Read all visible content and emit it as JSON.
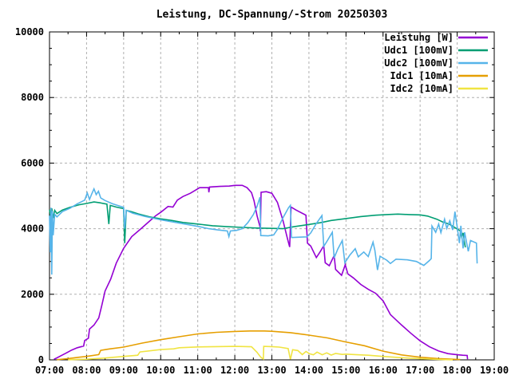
{
  "title": "Leistung, DC-Spannung/-Strom 20250303",
  "colors": {
    "background": "#ffffff",
    "border": "#000000",
    "grid": "#b0b0b0",
    "text": "#000000"
  },
  "chart_data": {
    "type": "line",
    "title": "Leistung, DC-Spannung/-Strom 20250303",
    "grid": true,
    "legend_position": "top-right",
    "x_axis": {
      "label": "",
      "range_hours": [
        7,
        19
      ],
      "tick_values": [
        7,
        8,
        9,
        10,
        11,
        12,
        13,
        14,
        15,
        16,
        17,
        18,
        19
      ],
      "tick_labels": [
        "07:00",
        "08:00",
        "09:00",
        "10:00",
        "11:00",
        "12:00",
        "13:00",
        "14:00",
        "15:00",
        "16:00",
        "17:00",
        "18:00",
        "19:00"
      ],
      "minor_tick_step_hours": 0.5
    },
    "y_axis": {
      "label": "",
      "range": [
        0,
        10000
      ],
      "tick_values": [
        0,
        2000,
        4000,
        6000,
        8000,
        10000
      ],
      "tick_labels": [
        "0",
        "2000",
        "4000",
        "6000",
        "8000",
        "10000"
      ],
      "minor_tick_step": 500
    },
    "series": [
      {
        "name": "Leistung [W]",
        "color": "#9400D3",
        "points": [
          [
            7.12,
            20
          ],
          [
            7.2,
            60
          ],
          [
            7.3,
            120
          ],
          [
            7.45,
            210
          ],
          [
            7.6,
            300
          ],
          [
            7.75,
            370
          ],
          [
            7.92,
            420
          ],
          [
            7.95,
            590
          ],
          [
            8.05,
            660
          ],
          [
            8.08,
            940
          ],
          [
            8.2,
            1060
          ],
          [
            8.33,
            1280
          ],
          [
            8.42,
            1700
          ],
          [
            8.5,
            2100
          ],
          [
            8.65,
            2460
          ],
          [
            8.8,
            2950
          ],
          [
            9.0,
            3400
          ],
          [
            9.22,
            3760
          ],
          [
            9.45,
            3980
          ],
          [
            9.7,
            4230
          ],
          [
            9.87,
            4400
          ],
          [
            10.0,
            4500
          ],
          [
            10.2,
            4680
          ],
          [
            10.33,
            4660
          ],
          [
            10.45,
            4870
          ],
          [
            10.6,
            4980
          ],
          [
            10.8,
            5080
          ],
          [
            10.95,
            5180
          ],
          [
            11.05,
            5250
          ],
          [
            11.29,
            5250
          ],
          [
            11.3,
            5110
          ],
          [
            11.32,
            5270
          ],
          [
            11.6,
            5290
          ],
          [
            11.85,
            5300
          ],
          [
            12.0,
            5320
          ],
          [
            12.2,
            5320
          ],
          [
            12.33,
            5250
          ],
          [
            12.45,
            5100
          ],
          [
            12.52,
            4850
          ],
          [
            12.6,
            4400
          ],
          [
            12.68,
            4060
          ],
          [
            12.69,
            3920
          ],
          [
            12.71,
            5110
          ],
          [
            12.85,
            5130
          ],
          [
            13.0,
            5080
          ],
          [
            13.15,
            4800
          ],
          [
            13.3,
            4250
          ],
          [
            13.42,
            3700
          ],
          [
            13.48,
            3440
          ],
          [
            13.52,
            4660
          ],
          [
            13.65,
            4570
          ],
          [
            13.92,
            4410
          ],
          [
            13.96,
            3560
          ],
          [
            14.05,
            3470
          ],
          [
            14.2,
            3120
          ],
          [
            14.3,
            3290
          ],
          [
            14.4,
            3480
          ],
          [
            14.44,
            2960
          ],
          [
            14.55,
            2870
          ],
          [
            14.68,
            3180
          ],
          [
            14.72,
            2760
          ],
          [
            14.88,
            2580
          ],
          [
            14.98,
            2900
          ],
          [
            15.05,
            2620
          ],
          [
            15.2,
            2500
          ],
          [
            15.4,
            2300
          ],
          [
            15.6,
            2150
          ],
          [
            15.8,
            2030
          ],
          [
            16.0,
            1800
          ],
          [
            16.2,
            1380
          ],
          [
            16.5,
            1060
          ],
          [
            16.75,
            810
          ],
          [
            17.0,
            580
          ],
          [
            17.25,
            400
          ],
          [
            17.5,
            270
          ],
          [
            17.75,
            190
          ],
          [
            18.0,
            155
          ],
          [
            18.15,
            140
          ],
          [
            18.27,
            135
          ],
          [
            18.28,
            20
          ]
        ]
      },
      {
        "name": "Udc1 [100mV]",
        "color": "#009E73",
        "points": [
          [
            7.0,
            4580
          ],
          [
            7.03,
            4370
          ],
          [
            7.06,
            4620
          ],
          [
            7.1,
            4320
          ],
          [
            7.14,
            4560
          ],
          [
            7.2,
            4460
          ],
          [
            7.35,
            4570
          ],
          [
            7.55,
            4650
          ],
          [
            7.8,
            4730
          ],
          [
            8.0,
            4770
          ],
          [
            8.2,
            4815
          ],
          [
            8.35,
            4790
          ],
          [
            8.55,
            4750
          ],
          [
            8.6,
            4140
          ],
          [
            8.64,
            4710
          ],
          [
            8.8,
            4660
          ],
          [
            9.0,
            4610
          ],
          [
            9.03,
            3560
          ],
          [
            9.07,
            4560
          ],
          [
            9.2,
            4520
          ],
          [
            9.4,
            4450
          ],
          [
            9.7,
            4360
          ],
          [
            10.0,
            4300
          ],
          [
            10.3,
            4250
          ],
          [
            10.6,
            4190
          ],
          [
            11.0,
            4140
          ],
          [
            11.4,
            4090
          ],
          [
            11.8,
            4060
          ],
          [
            12.2,
            4040
          ],
          [
            12.6,
            4020
          ],
          [
            13.0,
            4010
          ],
          [
            13.3,
            4000
          ],
          [
            13.6,
            4060
          ],
          [
            14.0,
            4130
          ],
          [
            14.3,
            4180
          ],
          [
            14.6,
            4250
          ],
          [
            15.0,
            4310
          ],
          [
            15.4,
            4370
          ],
          [
            15.8,
            4410
          ],
          [
            16.1,
            4430
          ],
          [
            16.4,
            4445
          ],
          [
            16.7,
            4430
          ],
          [
            17.0,
            4420
          ],
          [
            17.2,
            4385
          ],
          [
            17.45,
            4290
          ],
          [
            17.6,
            4210
          ],
          [
            17.78,
            4140
          ],
          [
            17.9,
            4060
          ],
          [
            18.0,
            3990
          ],
          [
            18.08,
            3940
          ],
          [
            18.12,
            3750
          ],
          [
            18.16,
            3870
          ],
          [
            18.22,
            3430
          ]
        ]
      },
      {
        "name": "Udc2 [100mV]",
        "color": "#56B4E9",
        "points": [
          [
            7.0,
            4400
          ],
          [
            7.02,
            3280
          ],
          [
            7.04,
            4640
          ],
          [
            7.06,
            2600
          ],
          [
            7.08,
            4540
          ],
          [
            7.1,
            3800
          ],
          [
            7.14,
            4440
          ],
          [
            7.2,
            4360
          ],
          [
            7.35,
            4520
          ],
          [
            7.55,
            4620
          ],
          [
            7.75,
            4760
          ],
          [
            7.95,
            4870
          ],
          [
            8.02,
            5090
          ],
          [
            8.08,
            4890
          ],
          [
            8.14,
            5060
          ],
          [
            8.2,
            5215
          ],
          [
            8.26,
            5040
          ],
          [
            8.32,
            5140
          ],
          [
            8.38,
            4940
          ],
          [
            8.5,
            4860
          ],
          [
            8.7,
            4760
          ],
          [
            9.0,
            4650
          ],
          [
            9.03,
            4000
          ],
          [
            9.07,
            4560
          ],
          [
            9.25,
            4470
          ],
          [
            9.55,
            4380
          ],
          [
            10.0,
            4270
          ],
          [
            10.5,
            4170
          ],
          [
            11.0,
            4070
          ],
          [
            11.3,
            4000
          ],
          [
            11.55,
            3960
          ],
          [
            11.8,
            3930
          ],
          [
            11.84,
            3760
          ],
          [
            11.88,
            3930
          ],
          [
            12.05,
            3950
          ],
          [
            12.2,
            4000
          ],
          [
            12.35,
            4180
          ],
          [
            12.5,
            4430
          ],
          [
            12.6,
            4680
          ],
          [
            12.68,
            4960
          ],
          [
            12.7,
            3790
          ],
          [
            12.9,
            3780
          ],
          [
            13.05,
            3810
          ],
          [
            13.15,
            3980
          ],
          [
            13.3,
            4330
          ],
          [
            13.45,
            4640
          ],
          [
            13.5,
            4710
          ],
          [
            13.53,
            3730
          ],
          [
            13.7,
            3740
          ],
          [
            13.94,
            3750
          ],
          [
            14.05,
            3870
          ],
          [
            14.2,
            4160
          ],
          [
            14.35,
            4400
          ],
          [
            14.4,
            3460
          ],
          [
            14.5,
            3640
          ],
          [
            14.63,
            3890
          ],
          [
            14.68,
            3110
          ],
          [
            14.78,
            3380
          ],
          [
            14.9,
            3640
          ],
          [
            14.97,
            2960
          ],
          [
            15.1,
            3190
          ],
          [
            15.25,
            3390
          ],
          [
            15.33,
            3140
          ],
          [
            15.48,
            3290
          ],
          [
            15.6,
            3150
          ],
          [
            15.73,
            3590
          ],
          [
            15.78,
            3340
          ],
          [
            15.85,
            2740
          ],
          [
            15.92,
            3160
          ],
          [
            16.1,
            3040
          ],
          [
            16.2,
            2940
          ],
          [
            16.35,
            3070
          ],
          [
            16.65,
            3050
          ],
          [
            16.9,
            3000
          ],
          [
            17.1,
            2880
          ],
          [
            17.25,
            3030
          ],
          [
            17.3,
            3090
          ],
          [
            17.32,
            4080
          ],
          [
            17.42,
            3890
          ],
          [
            17.5,
            4140
          ],
          [
            17.56,
            3880
          ],
          [
            17.66,
            4290
          ],
          [
            17.72,
            4010
          ],
          [
            17.8,
            4240
          ],
          [
            17.88,
            3960
          ],
          [
            17.94,
            4520
          ],
          [
            18.0,
            4050
          ],
          [
            18.06,
            3560
          ],
          [
            18.1,
            4090
          ],
          [
            18.16,
            3400
          ],
          [
            18.2,
            3890
          ],
          [
            18.3,
            3310
          ],
          [
            18.36,
            3640
          ],
          [
            18.52,
            3560
          ],
          [
            18.54,
            2940
          ]
        ]
      },
      {
        "name": "Idc1 [10mA]",
        "color": "#E69F00",
        "points": [
          [
            7.2,
            5
          ],
          [
            7.5,
            40
          ],
          [
            7.8,
            80
          ],
          [
            8.0,
            105
          ],
          [
            8.33,
            160
          ],
          [
            8.38,
            290
          ],
          [
            8.6,
            330
          ],
          [
            9.0,
            390
          ],
          [
            9.5,
            510
          ],
          [
            10.0,
            615
          ],
          [
            10.5,
            705
          ],
          [
            11.0,
            790
          ],
          [
            11.5,
            840
          ],
          [
            12.0,
            865
          ],
          [
            12.4,
            880
          ],
          [
            12.8,
            880
          ],
          [
            13.0,
            870
          ],
          [
            13.5,
            830
          ],
          [
            14.0,
            755
          ],
          [
            14.5,
            670
          ],
          [
            15.0,
            545
          ],
          [
            15.5,
            430
          ],
          [
            16.0,
            265
          ],
          [
            16.5,
            150
          ],
          [
            17.0,
            80
          ],
          [
            17.5,
            40
          ],
          [
            18.0,
            15
          ],
          [
            18.08,
            10
          ]
        ]
      },
      {
        "name": "Idc2 [10mA]",
        "color": "#F0E442",
        "points": [
          [
            7.5,
            5
          ],
          [
            8.0,
            20
          ],
          [
            8.5,
            55
          ],
          [
            9.0,
            105
          ],
          [
            9.38,
            140
          ],
          [
            9.44,
            240
          ],
          [
            10.0,
            315
          ],
          [
            10.35,
            335
          ],
          [
            10.5,
            370
          ],
          [
            11.0,
            395
          ],
          [
            11.5,
            405
          ],
          [
            12.0,
            410
          ],
          [
            12.45,
            400
          ],
          [
            12.6,
            230
          ],
          [
            12.7,
            80
          ],
          [
            12.77,
            25
          ],
          [
            12.78,
            410
          ],
          [
            13.0,
            405
          ],
          [
            13.2,
            390
          ],
          [
            13.44,
            345
          ],
          [
            13.5,
            15
          ],
          [
            13.56,
            310
          ],
          [
            13.7,
            285
          ],
          [
            13.82,
            160
          ],
          [
            13.92,
            255
          ],
          [
            14.02,
            185
          ],
          [
            14.12,
            155
          ],
          [
            14.22,
            235
          ],
          [
            14.36,
            155
          ],
          [
            14.48,
            215
          ],
          [
            14.6,
            145
          ],
          [
            14.72,
            195
          ],
          [
            14.9,
            165
          ],
          [
            15.0,
            175
          ],
          [
            15.3,
            155
          ],
          [
            15.6,
            140
          ],
          [
            16.0,
            105
          ],
          [
            16.5,
            65
          ],
          [
            17.0,
            35
          ],
          [
            17.5,
            12
          ],
          [
            17.88,
            3
          ]
        ]
      }
    ]
  }
}
